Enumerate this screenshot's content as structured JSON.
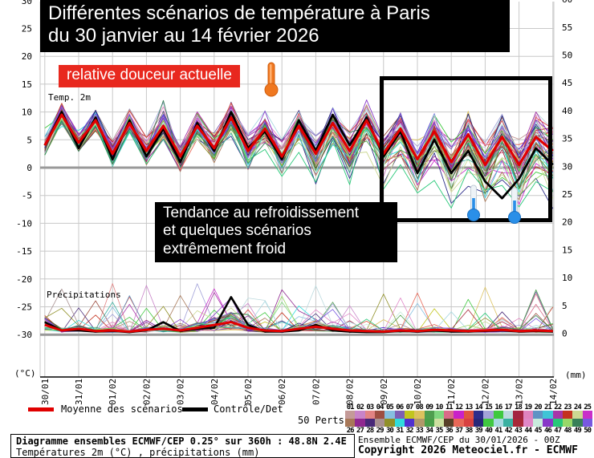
{
  "title": {
    "line1": "Différentes scénarios de température à Paris",
    "line2": "du 30 janvier au 14 février 2026"
  },
  "annotations": {
    "warm": "relative douceur actuelle",
    "cold_line1": "Tendance au refroidissement",
    "cold_line2": "et quelques scénarios",
    "cold_line3": "extrêmement froid"
  },
  "chart_labels": {
    "temp_section": "Temp. 2m",
    "precip_section": "Précipitations",
    "temp_unit": "(°C)",
    "precip_unit": "(mm)"
  },
  "legend": {
    "mean": "Moyenne des scénarios",
    "control": "Contrôle/Det",
    "perts": "50 Perts."
  },
  "footer": {
    "left_line1": "Diagramme ensembles ECMWF/CEP 0.25° sur 360h : 48.8N 2.4E",
    "left_line2": "Températures 2m (°C) , précipitations (mm)",
    "right_line1": "Ensemble ECMWF/CEP du 30/01/2026 - 00Z",
    "right_line2": "Copyright 2026 Meteociel.fr - ECMWF"
  },
  "colors": {
    "mean": "#e00000",
    "control": "#000000",
    "grid": "#c8c8c8",
    "zero_line": "#999999",
    "annotation_red_bg": "#e8281e",
    "warm_thermo": "#f07820",
    "cold_thermo": "#2a8fe8",
    "member_palette": [
      "#c49a98",
      "#c883c8",
      "#e28383",
      "#9e4f42",
      "#86bfe0",
      "#7d5fb5",
      "#c2c51e",
      "#dcc25e",
      "#4f9e4f",
      "#7fd67f",
      "#d96a88",
      "#c921c9",
      "#e0543f",
      "#2d2d8a",
      "#a3a3d9",
      "#3fc93f",
      "#bcdade",
      "#a32441",
      "#e083bf",
      "#5f93c4",
      "#3fc4d6",
      "#a834a8",
      "#c4321e",
      "#ccd892",
      "#c92fc9",
      "#a87858",
      "#902890",
      "#482878",
      "#a89090",
      "#909028",
      "#30dcdc",
      "#5030d0",
      "#b0986a",
      "#48a048",
      "#cde0a0",
      "#584028",
      "#e86858",
      "#d84040",
      "#282878",
      "#40c840",
      "#a8d8e0",
      "#38b0a0",
      "#a82838",
      "#e088c8",
      "#c8ecdc",
      "#8838c8",
      "#28c878",
      "#98d868",
      "#388058",
      "#7858e0"
    ]
  },
  "chart_data": {
    "type": "line",
    "title": "Diagramme ensembles ECMWF/CEP - Paris 48.8N 2.4E",
    "x_dates": [
      "30/01",
      "31/01",
      "01/02",
      "02/02",
      "03/02",
      "04/02",
      "05/02",
      "06/02",
      "07/02",
      "08/02",
      "09/02",
      "10/02",
      "11/02",
      "12/02",
      "13/02",
      "14/02"
    ],
    "time_step_hours": 12,
    "temp_axis": {
      "label": "(°C)",
      "ticks": [
        30,
        25,
        20,
        15,
        10,
        5,
        0,
        -5,
        -10,
        -15,
        -20,
        -25,
        -30
      ],
      "range": [
        -30,
        30
      ]
    },
    "precip_axis": {
      "label": "(mm)",
      "ticks": [
        60,
        55,
        50,
        45,
        40,
        35,
        30,
        25,
        20,
        15,
        10,
        5,
        0
      ],
      "range": [
        0,
        60
      ]
    },
    "series": [
      {
        "name": "Moyenne des scénarios",
        "color": "#e00000",
        "temp": [
          4.0,
          9.5,
          4.5,
          8.5,
          2.5,
          8.0,
          3.0,
          7.5,
          2.0,
          7.5,
          3.5,
          9.0,
          3.0,
          7.0,
          2.0,
          7.5,
          2.5,
          8.0,
          3.0,
          8.5,
          2.5,
          7.0,
          1.5,
          6.5,
          1.0,
          6.0,
          0.5,
          5.5,
          0.5,
          5.5,
          3.0
        ],
        "precip": [
          1.5,
          0.5,
          0.8,
          0.4,
          0.5,
          0.3,
          0.6,
          0.8,
          0.5,
          1.0,
          1.5,
          2.0,
          1.0,
          0.5,
          0.4,
          0.8,
          1.2,
          0.8,
          0.5,
          0.4,
          0.3,
          0.5,
          0.4,
          0.6,
          0.5,
          0.4,
          0.5,
          0.6,
          0.4,
          0.5,
          0.4
        ]
      },
      {
        "name": "Contrôle/Det",
        "color": "#000000",
        "temp": [
          4.0,
          10.0,
          3.5,
          9.0,
          1.5,
          8.5,
          2.0,
          7.0,
          1.0,
          8.0,
          3.0,
          10.0,
          3.5,
          6.5,
          1.5,
          8.5,
          3.0,
          9.5,
          4.0,
          9.0,
          2.0,
          6.5,
          -1.0,
          5.0,
          -1.0,
          3.0,
          -2.5,
          -5.5,
          -2.0,
          3.5,
          0.5
        ],
        "precip": [
          2.0,
          0.5,
          0.5,
          0.3,
          0.4,
          0.2,
          0.5,
          2.0,
          0.4,
          0.8,
          1.0,
          6.5,
          1.5,
          0.3,
          0.3,
          0.5,
          1.5,
          0.5,
          0.3,
          0.2,
          0.2,
          0.4,
          0.3,
          0.5,
          0.3,
          0.3,
          0.4,
          0.5,
          0.3,
          0.4,
          0.3
        ]
      }
    ],
    "ensemble": {
      "count": 50,
      "labels_top": [
        "01",
        "02",
        "03",
        "04",
        "05",
        "06",
        "07",
        "08",
        "09",
        "10",
        "11",
        "12",
        "13",
        "14",
        "15",
        "16",
        "17",
        "18",
        "19",
        "20",
        "21",
        "22",
        "23",
        "24",
        "25"
      ],
      "labels_bottom": [
        "26",
        "27",
        "28",
        "29",
        "30",
        "31",
        "32",
        "33",
        "34",
        "35",
        "36",
        "37",
        "38",
        "39",
        "40",
        "41",
        "42",
        "43",
        "44",
        "45",
        "46",
        "47",
        "48",
        "49",
        "50"
      ],
      "spread_start_c": 1.5,
      "spread_end_c": 6,
      "cold_outlier_min_c": -14,
      "precip_spike_max_mm": 12
    }
  }
}
